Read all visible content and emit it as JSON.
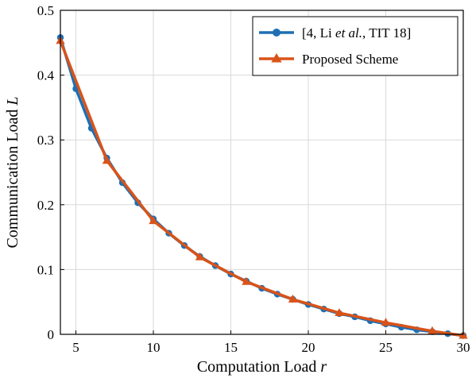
{
  "chart_data": {
    "type": "line",
    "title": "",
    "xlabel": "Computation Load",
    "xlabel_var": "r",
    "ylabel": "Communication Load",
    "ylabel_var": "L",
    "xlim": [
      4,
      30
    ],
    "ylim": [
      0,
      0.5
    ],
    "xticks": [
      5,
      10,
      15,
      20,
      25,
      30
    ],
    "yticks": [
      0,
      0.1,
      0.2,
      0.3,
      0.4,
      0.5
    ],
    "grid": true,
    "legend_position": "top-right",
    "series": [
      {
        "name_parts": [
          "[4, Li ",
          "et al.",
          ", TIT 18]"
        ],
        "color": "#1f6fb4",
        "marker": "circle",
        "x": [
          4,
          5,
          6,
          7,
          8,
          9,
          10,
          11,
          12,
          13,
          14,
          15,
          16,
          17,
          18,
          19,
          20,
          21,
          22,
          23,
          24,
          25,
          26,
          27,
          28,
          29,
          30
        ],
        "y": [
          0.458,
          0.379,
          0.318,
          0.272,
          0.234,
          0.203,
          0.178,
          0.156,
          0.137,
          0.12,
          0.106,
          0.093,
          0.082,
          0.071,
          0.062,
          0.054,
          0.046,
          0.039,
          0.032,
          0.027,
          0.021,
          0.016,
          0.011,
          0.007,
          0.004,
          0.001,
          -0.002
        ]
      },
      {
        "name": "Proposed Scheme",
        "color": "#d95319",
        "marker": "triangle",
        "x": [
          4,
          7,
          10,
          13,
          16,
          19,
          22,
          25,
          28,
          30
        ],
        "y": [
          0.453,
          0.268,
          0.175,
          0.119,
          0.081,
          0.054,
          0.033,
          0.018,
          0.005,
          -0.002
        ]
      }
    ]
  }
}
